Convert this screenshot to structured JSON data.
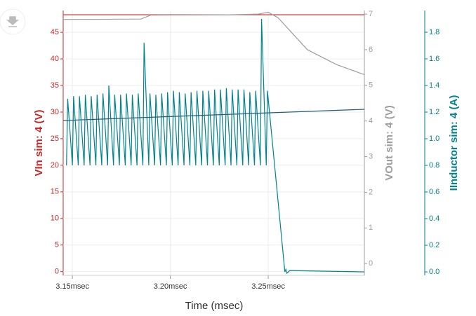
{
  "chart_data": {
    "type": "line",
    "xlabel": "Time (msec)",
    "ylabel": "VIn sim: 4 (V)",
    "y2label": "VOut sim: 4 (V)",
    "y3label": "IInductor sim: 4 (A)",
    "xlim": [
      3.1453,
      3.2991
    ],
    "xticks": [
      {
        "value": 3.15,
        "label": "3.15msec"
      },
      {
        "value": 3.2,
        "label": "3.20msec"
      },
      {
        "value": 3.25,
        "label": "3.25msec"
      }
    ],
    "ylim": [
      -0.7,
      49.1
    ],
    "yticks": [
      0,
      5,
      10,
      15,
      20,
      25,
      30,
      35,
      40,
      45
    ],
    "y2lim": [
      -0.33,
      7.1
    ],
    "y2ticks": [
      0,
      1,
      2,
      3,
      4,
      5,
      6,
      7
    ],
    "y3lim": [
      -0.026,
      1.963
    ],
    "y3ticks": [
      {
        "value": 0,
        "label": "0.0"
      },
      0.2,
      0.4,
      0.6,
      0.8,
      {
        "value": 1,
        "label": "1.0"
      },
      1.2,
      1.4,
      1.6,
      1.8
    ],
    "grid": true,
    "axis_colors": {
      "y": "#c62828",
      "y2": "#9e9e9e",
      "y3": "#00838f"
    },
    "series": [
      {
        "axis": "y",
        "color": "#c62828",
        "x": [
          3.1453,
          3.2991
        ],
        "values": [
          48.3,
          48.3
        ]
      },
      {
        "axis": "y2",
        "color": "#9e9e9e",
        "x": [
          3.1453,
          3.185,
          3.19,
          3.23,
          3.245,
          3.25,
          3.255,
          3.27,
          3.285,
          3.2991
        ],
        "values": [
          6.85,
          6.86,
          6.97,
          6.98,
          7.0,
          7.05,
          6.9,
          6.0,
          5.58,
          5.3
        ]
      },
      {
        "axis": "y3",
        "color": "#00838f",
        "x": [
          3.147,
          3.1476,
          3.15,
          3.1506,
          3.153,
          3.1536,
          3.156,
          3.1566,
          3.159,
          3.1596,
          3.162,
          3.1626,
          3.165,
          3.1656,
          3.168,
          3.1686,
          3.171,
          3.1716,
          3.174,
          3.1746,
          3.177,
          3.1776,
          3.18,
          3.1806,
          3.183,
          3.1836,
          3.186,
          3.1866,
          3.189,
          3.1896,
          3.192,
          3.1926,
          3.195,
          3.1956,
          3.198,
          3.1986,
          3.201,
          3.2016,
          3.204,
          3.2046,
          3.207,
          3.2076,
          3.21,
          3.2106,
          3.213,
          3.2136,
          3.216,
          3.2166,
          3.219,
          3.2196,
          3.222,
          3.2226,
          3.225,
          3.2256,
          3.228,
          3.2286,
          3.231,
          3.2316,
          3.234,
          3.2346,
          3.237,
          3.2376,
          3.24,
          3.2406,
          3.243,
          3.2436,
          3.246,
          3.2466,
          3.249,
          3.2496,
          3.2585,
          3.259,
          3.2595,
          3.261,
          3.2991
        ],
        "values": [
          0.8,
          1.3,
          0.8,
          1.32,
          0.8,
          1.32,
          0.8,
          1.33,
          0.8,
          1.32,
          0.8,
          1.33,
          0.8,
          1.34,
          0.8,
          1.4,
          0.8,
          1.33,
          0.8,
          1.33,
          0.8,
          1.34,
          0.8,
          1.33,
          0.8,
          1.34,
          0.8,
          1.72,
          0.8,
          1.34,
          0.8,
          1.33,
          0.8,
          1.34,
          0.8,
          1.35,
          0.8,
          1.36,
          0.8,
          1.35,
          0.8,
          1.34,
          0.8,
          1.35,
          0.8,
          1.36,
          0.8,
          1.36,
          0.8,
          1.36,
          0.8,
          1.37,
          0.8,
          1.37,
          0.8,
          1.38,
          0.8,
          1.37,
          0.8,
          1.37,
          0.8,
          1.37,
          0.8,
          1.35,
          0.8,
          1.36,
          0.8,
          1.9,
          0.8,
          1.36,
          0.0,
          0.02,
          -0.01,
          0.01,
          0.0
        ]
      },
      {
        "axis": "y3",
        "color": "#1f5f7a",
        "x": [
          3.1453,
          3.2991
        ],
        "values": [
          1.137,
          1.221
        ]
      }
    ]
  }
}
